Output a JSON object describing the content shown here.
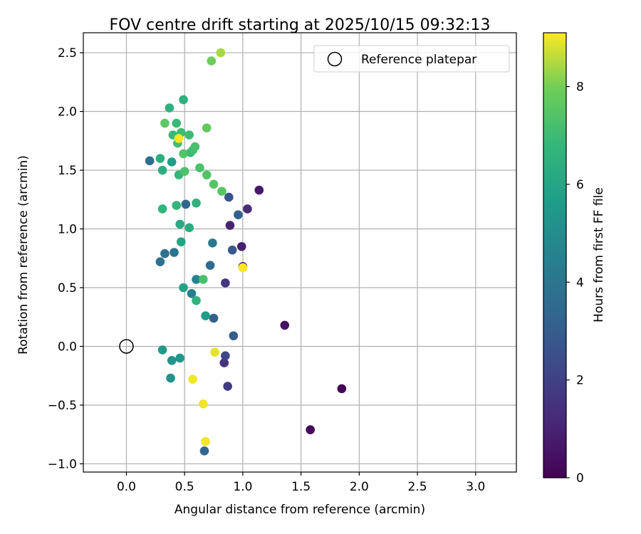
{
  "chart_data": {
    "type": "scatter",
    "title": "FOV centre drift starting at 2025/10/15 09:32:13",
    "xlabel": "Angular distance from reference (arcmin)",
    "ylabel": "Rotation from reference (arcmin)",
    "xlim": [
      -0.37,
      3.35
    ],
    "ylim": [
      -1.07,
      2.67
    ],
    "grid": true,
    "legend": {
      "position": "top-right",
      "entries": [
        "Reference platepar"
      ]
    },
    "x_ticks": [
      0.0,
      0.5,
      1.0,
      1.5,
      2.0,
      2.5,
      3.0
    ],
    "x_tick_labels": [
      "0.0",
      "0.5",
      "1.0",
      "1.5",
      "2.0",
      "2.5",
      "3.0"
    ],
    "y_ticks": [
      -1.0,
      -0.5,
      0.0,
      0.5,
      1.0,
      1.5,
      2.0,
      2.5
    ],
    "y_tick_labels": [
      "−1.0",
      "−0.5",
      "0.0",
      "0.5",
      "1.0",
      "1.5",
      "2.0",
      "2.5"
    ],
    "reference_point": {
      "label": "Reference platepar",
      "x": 0.0,
      "y": 0.0
    },
    "colorbar": {
      "label": "Hours from first FF file",
      "min": 0,
      "max": 9.1,
      "colormap": "viridis",
      "ticks": [
        0,
        2,
        4,
        6,
        8
      ],
      "tick_labels": [
        "0",
        "2",
        "4",
        "6",
        "8"
      ]
    },
    "points": [
      {
        "x": 1.85,
        "y": -0.36,
        "c": 0.1
      },
      {
        "x": 1.58,
        "y": -0.71,
        "c": 0.3
      },
      {
        "x": 1.36,
        "y": 0.18,
        "c": 0.5
      },
      {
        "x": 1.14,
        "y": 1.33,
        "c": 0.7
      },
      {
        "x": 0.99,
        "y": 0.85,
        "c": 0.9
      },
      {
        "x": 0.89,
        "y": 1.03,
        "c": 1.0
      },
      {
        "x": 1.0,
        "y": 0.68,
        "c": 1.1
      },
      {
        "x": 1.04,
        "y": 1.17,
        "c": 1.3
      },
      {
        "x": 0.84,
        "y": -0.14,
        "c": 1.5
      },
      {
        "x": 0.85,
        "y": 0.54,
        "c": 1.6
      },
      {
        "x": 0.87,
        "y": -0.34,
        "c": 1.8
      },
      {
        "x": 0.85,
        "y": -0.08,
        "c": 2.2
      },
      {
        "x": 0.88,
        "y": 1.27,
        "c": 2.6
      },
      {
        "x": 0.91,
        "y": 0.82,
        "c": 2.9
      },
      {
        "x": 0.92,
        "y": 0.09,
        "c": 3.0
      },
      {
        "x": 0.75,
        "y": 0.24,
        "c": 3.1
      },
      {
        "x": 0.96,
        "y": 1.12,
        "c": 3.2
      },
      {
        "x": 0.67,
        "y": -0.89,
        "c": 3.3
      },
      {
        "x": 0.51,
        "y": 1.21,
        "c": 3.4
      },
      {
        "x": 0.72,
        "y": 0.69,
        "c": 3.6
      },
      {
        "x": 0.2,
        "y": 1.58,
        "c": 3.7
      },
      {
        "x": 0.29,
        "y": 0.72,
        "c": 3.8
      },
      {
        "x": 0.33,
        "y": 0.79,
        "c": 3.9
      },
      {
        "x": 0.41,
        "y": 0.8,
        "c": 4.0
      },
      {
        "x": 0.74,
        "y": 0.88,
        "c": 4.2
      },
      {
        "x": 0.56,
        "y": 0.45,
        "c": 4.4
      },
      {
        "x": 0.6,
        "y": 0.57,
        "c": 4.6
      },
      {
        "x": 0.38,
        "y": -0.27,
        "c": 5.2
      },
      {
        "x": 0.39,
        "y": -0.12,
        "c": 5.3
      },
      {
        "x": 0.46,
        "y": -0.1,
        "c": 5.4
      },
      {
        "x": 0.31,
        "y": -0.03,
        "c": 5.5
      },
      {
        "x": 0.68,
        "y": 0.26,
        "c": 5.6
      },
      {
        "x": 0.39,
        "y": 1.57,
        "c": 5.7
      },
      {
        "x": 0.49,
        "y": 0.5,
        "c": 5.9
      },
      {
        "x": 0.47,
        "y": 0.89,
        "c": 6.0
      },
      {
        "x": 0.46,
        "y": 1.04,
        "c": 6.2
      },
      {
        "x": 0.54,
        "y": 1.01,
        "c": 6.3
      },
      {
        "x": 0.29,
        "y": 1.6,
        "c": 6.4
      },
      {
        "x": 0.31,
        "y": 1.5,
        "c": 6.4
      },
      {
        "x": 0.37,
        "y": 2.03,
        "c": 6.5
      },
      {
        "x": 0.49,
        "y": 2.1,
        "c": 6.5
      },
      {
        "x": 0.6,
        "y": 0.39,
        "c": 6.6
      },
      {
        "x": 0.6,
        "y": 1.22,
        "c": 6.6
      },
      {
        "x": 0.31,
        "y": 1.17,
        "c": 6.7
      },
      {
        "x": 0.43,
        "y": 1.2,
        "c": 6.7
      },
      {
        "x": 0.45,
        "y": 1.46,
        "c": 6.8
      },
      {
        "x": 0.55,
        "y": 1.65,
        "c": 6.8
      },
      {
        "x": 0.4,
        "y": 1.8,
        "c": 6.9
      },
      {
        "x": 0.43,
        "y": 1.9,
        "c": 6.9
      },
      {
        "x": 0.47,
        "y": 1.82,
        "c": 7.0
      },
      {
        "x": 0.54,
        "y": 1.8,
        "c": 7.0
      },
      {
        "x": 0.44,
        "y": 1.73,
        "c": 7.1
      },
      {
        "x": 0.57,
        "y": 1.67,
        "c": 7.1
      },
      {
        "x": 0.59,
        "y": 1.7,
        "c": 7.2
      },
      {
        "x": 0.66,
        "y": 0.57,
        "c": 7.2
      },
      {
        "x": 0.5,
        "y": 1.49,
        "c": 7.3
      },
      {
        "x": 0.63,
        "y": 1.52,
        "c": 7.3
      },
      {
        "x": 0.69,
        "y": 1.46,
        "c": 7.4
      },
      {
        "x": 0.49,
        "y": 1.64,
        "c": 7.4
      },
      {
        "x": 0.75,
        "y": 1.38,
        "c": 7.5
      },
      {
        "x": 0.82,
        "y": 1.32,
        "c": 7.5
      },
      {
        "x": 0.33,
        "y": 1.9,
        "c": 7.6
      },
      {
        "x": 0.69,
        "y": 1.86,
        "c": 7.7
      },
      {
        "x": 0.73,
        "y": 2.43,
        "c": 7.9
      },
      {
        "x": 0.81,
        "y": 2.5,
        "c": 8.4
      },
      {
        "x": 0.76,
        "y": -0.05,
        "c": 8.9
      },
      {
        "x": 0.57,
        "y": -0.28,
        "c": 9.0
      },
      {
        "x": 0.66,
        "y": -0.49,
        "c": 9.0
      },
      {
        "x": 0.68,
        "y": -0.81,
        "c": 9.0
      },
      {
        "x": 1.0,
        "y": 0.67,
        "c": 9.1
      },
      {
        "x": 0.45,
        "y": 1.77,
        "c": 9.1
      }
    ]
  }
}
